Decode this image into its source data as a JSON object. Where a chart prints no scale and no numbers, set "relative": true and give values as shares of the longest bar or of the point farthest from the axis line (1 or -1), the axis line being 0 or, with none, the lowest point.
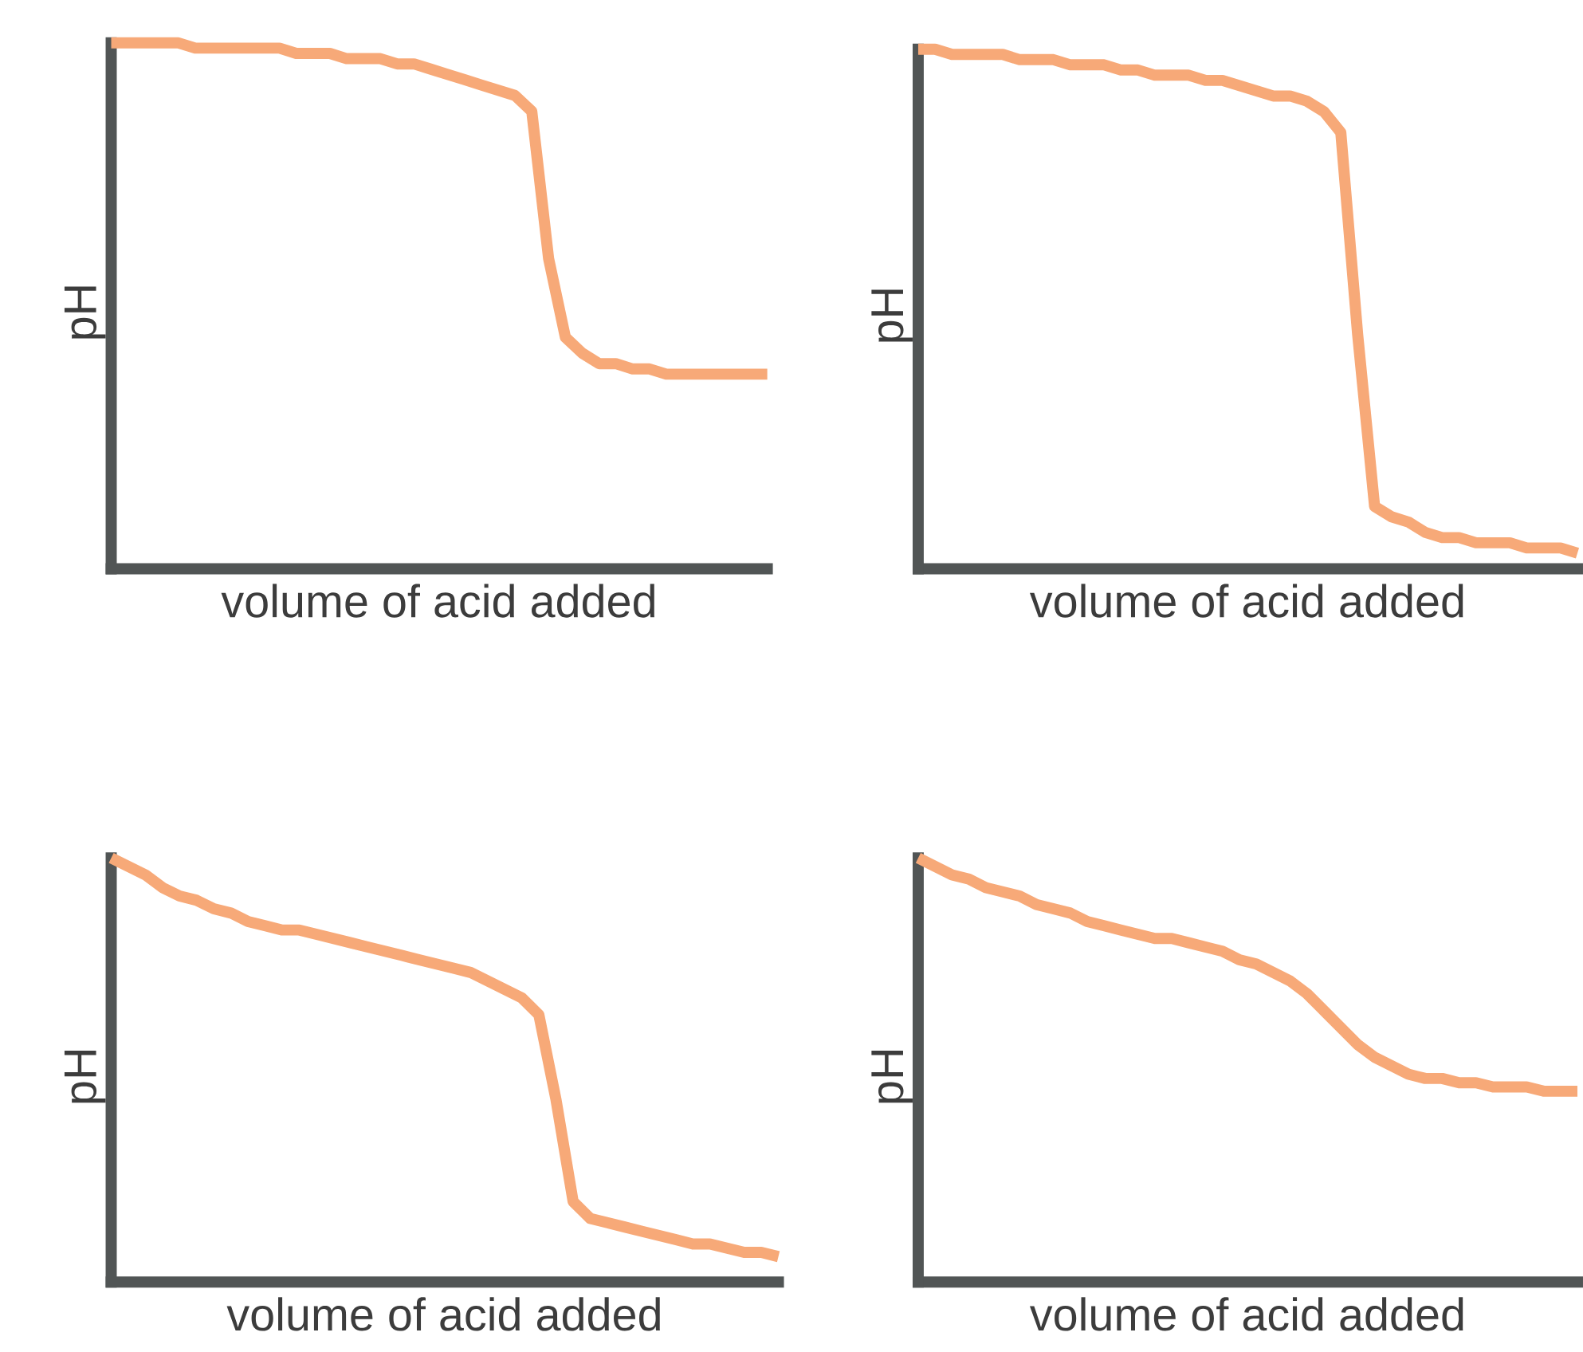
{
  "chart_data": [
    {
      "type": "line",
      "xlabel": "volume of acid added",
      "ylabel": "pH",
      "relative": true,
      "color": "#f7a978",
      "categories": [
        null,
        null,
        null,
        null,
        null,
        null,
        null,
        null,
        null,
        null,
        null,
        null,
        null,
        null,
        null,
        null,
        null,
        null,
        null,
        null,
        null,
        null,
        null,
        null,
        null,
        null,
        null,
        null,
        null,
        null,
        null,
        null,
        null,
        null,
        null,
        null,
        null,
        null,
        null,
        null
      ],
      "values": [
        1.0,
        1.0,
        1.0,
        1.0,
        1.0,
        0.99,
        0.99,
        0.99,
        0.99,
        0.99,
        0.99,
        0.98,
        0.98,
        0.98,
        0.97,
        0.97,
        0.97,
        0.96,
        0.96,
        0.95,
        0.94,
        0.93,
        0.92,
        0.91,
        0.9,
        0.87,
        0.59,
        0.44,
        0.41,
        0.39,
        0.39,
        0.38,
        0.38,
        0.37,
        0.37,
        0.37,
        0.37,
        0.37,
        0.37,
        0.37
      ]
    },
    {
      "type": "line",
      "xlabel": "volume of acid added",
      "ylabel": "pH",
      "relative": true,
      "color": "#f7a978",
      "categories": [
        null,
        null,
        null,
        null,
        null,
        null,
        null,
        null,
        null,
        null,
        null,
        null,
        null,
        null,
        null,
        null,
        null,
        null,
        null,
        null,
        null,
        null,
        null,
        null,
        null,
        null,
        null,
        null,
        null,
        null,
        null,
        null,
        null,
        null,
        null,
        null,
        null,
        null,
        null,
        null
      ],
      "values": [
        1.0,
        1.0,
        0.99,
        0.99,
        0.99,
        0.99,
        0.98,
        0.98,
        0.98,
        0.97,
        0.97,
        0.97,
        0.96,
        0.96,
        0.95,
        0.95,
        0.95,
        0.94,
        0.94,
        0.93,
        0.92,
        0.91,
        0.91,
        0.9,
        0.88,
        0.84,
        0.45,
        0.12,
        0.1,
        0.09,
        0.07,
        0.06,
        0.06,
        0.05,
        0.05,
        0.05,
        0.04,
        0.04,
        0.04,
        0.03
      ]
    },
    {
      "type": "line",
      "xlabel": "volume of acid added",
      "ylabel": "pH",
      "relative": true,
      "color": "#f7a978",
      "categories": [
        null,
        null,
        null,
        null,
        null,
        null,
        null,
        null,
        null,
        null,
        null,
        null,
        null,
        null,
        null,
        null,
        null,
        null,
        null,
        null,
        null,
        null,
        null,
        null,
        null,
        null,
        null,
        null,
        null,
        null,
        null,
        null,
        null,
        null,
        null,
        null,
        null,
        null,
        null,
        null
      ],
      "values": [
        1.0,
        0.98,
        0.96,
        0.93,
        0.91,
        0.9,
        0.88,
        0.87,
        0.85,
        0.84,
        0.83,
        0.83,
        0.82,
        0.81,
        0.8,
        0.79,
        0.78,
        0.77,
        0.76,
        0.75,
        0.74,
        0.73,
        0.71,
        0.69,
        0.67,
        0.63,
        0.43,
        0.19,
        0.15,
        0.14,
        0.13,
        0.12,
        0.11,
        0.1,
        0.09,
        0.09,
        0.08,
        0.07,
        0.07,
        0.06
      ]
    },
    {
      "type": "line",
      "xlabel": "volume of acid added",
      "ylabel": "pH",
      "relative": true,
      "color": "#f7a978",
      "categories": [
        null,
        null,
        null,
        null,
        null,
        null,
        null,
        null,
        null,
        null,
        null,
        null,
        null,
        null,
        null,
        null,
        null,
        null,
        null,
        null,
        null,
        null,
        null,
        null,
        null,
        null,
        null,
        null,
        null,
        null,
        null,
        null,
        null,
        null,
        null,
        null,
        null,
        null,
        null,
        null
      ],
      "values": [
        1.0,
        0.98,
        0.96,
        0.95,
        0.93,
        0.92,
        0.91,
        0.89,
        0.88,
        0.87,
        0.85,
        0.84,
        0.83,
        0.82,
        0.81,
        0.81,
        0.8,
        0.79,
        0.78,
        0.76,
        0.75,
        0.73,
        0.71,
        0.68,
        0.64,
        0.6,
        0.56,
        0.53,
        0.51,
        0.49,
        0.48,
        0.48,
        0.47,
        0.47,
        0.46,
        0.46,
        0.46,
        0.45,
        0.45,
        0.45
      ]
    }
  ]
}
